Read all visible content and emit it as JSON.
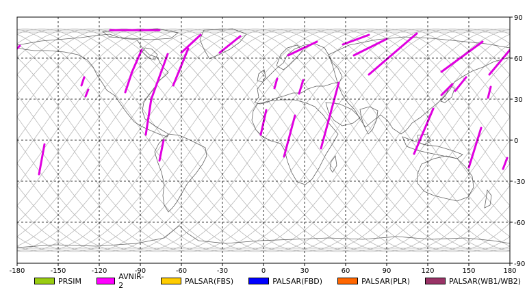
{
  "map": {
    "x_ticks": [
      "-180",
      "-150",
      "-120",
      "-90",
      "-60",
      "-30",
      "0",
      "30",
      "60",
      "90",
      "120",
      "150",
      "180"
    ],
    "y_ticks": [
      "90",
      "60",
      "30",
      "0",
      "-30",
      "-60",
      "-90"
    ],
    "x_tick_values": [
      -180,
      -150,
      -120,
      -90,
      -60,
      -30,
      0,
      30,
      60,
      90,
      120,
      150,
      180
    ],
    "y_tick_values": [
      90,
      60,
      30,
      0,
      -30,
      -60,
      -90
    ],
    "colors": {
      "frame": "#000000",
      "grid": "#000000",
      "coast": "#606060",
      "orbit": "#b8b8b8",
      "swath": "#e000e0"
    },
    "swaths": [
      {
        "lon1": -112,
        "lat1": 80.5,
        "lon2": -76,
        "lat2": 80.5
      },
      {
        "lon1": -89,
        "lat1": 66,
        "lon2": -96,
        "lat2": 50
      },
      {
        "lon1": -96,
        "lat1": 50,
        "lon2": -101,
        "lat2": 35
      },
      {
        "lon1": -70,
        "lat1": 63,
        "lon2": -82,
        "lat2": 30
      },
      {
        "lon1": -82,
        "lat1": 30,
        "lon2": -86,
        "lat2": 4
      },
      {
        "lon1": -55,
        "lat1": 67,
        "lon2": -66,
        "lat2": 40
      },
      {
        "lon1": -46,
        "lat1": 77,
        "lon2": -60,
        "lat2": 64
      },
      {
        "lon1": -17,
        "lat1": 76,
        "lon2": -32,
        "lat2": 64
      },
      {
        "lon1": -73,
        "lat1": 0,
        "lon2": -76,
        "lat2": -15
      },
      {
        "lon1": -160,
        "lat1": -3,
        "lon2": -164,
        "lat2": -25
      },
      {
        "lon1": -131,
        "lat1": 46,
        "lon2": -133,
        "lat2": 40
      },
      {
        "lon1": -128,
        "lat1": 37,
        "lon2": -130,
        "lat2": 32
      },
      {
        "lon1": -178,
        "lat1": 69,
        "lon2": -180,
        "lat2": 67
      },
      {
        "lon1": 2,
        "lat1": 22,
        "lon2": -2,
        "lat2": 4
      },
      {
        "lon1": 10,
        "lat1": 45,
        "lon2": 8,
        "lat2": 38
      },
      {
        "lon1": 39,
        "lat1": 72,
        "lon2": 18,
        "lat2": 62
      },
      {
        "lon1": 29,
        "lat1": 44,
        "lon2": 26,
        "lat2": 34
      },
      {
        "lon1": 23,
        "lat1": 18,
        "lon2": 15,
        "lat2": -12
      },
      {
        "lon1": 55,
        "lat1": 42,
        "lon2": 42,
        "lat2": -6
      },
      {
        "lon1": 90,
        "lat1": 74,
        "lon2": 66,
        "lat2": 62
      },
      {
        "lon1": 112,
        "lat1": 78,
        "lon2": 77,
        "lat2": 48
      },
      {
        "lon1": 77,
        "lat1": 77,
        "lon2": 58,
        "lat2": 70
      },
      {
        "lon1": 124,
        "lat1": 23,
        "lon2": 110,
        "lat2": -10
      },
      {
        "lon1": 160,
        "lat1": 72,
        "lon2": 130,
        "lat2": 50
      },
      {
        "lon1": 180,
        "lat1": 66,
        "lon2": 165,
        "lat2": 48
      },
      {
        "lon1": 138,
        "lat1": 41,
        "lon2": 130,
        "lat2": 33
      },
      {
        "lon1": 148,
        "lat1": 46,
        "lon2": 140,
        "lat2": 36
      },
      {
        "lon1": 159,
        "lat1": 9,
        "lon2": 150,
        "lat2": -20
      },
      {
        "lon1": 178,
        "lat1": -13,
        "lon2": 175,
        "lat2": -21
      },
      {
        "lon1": 166,
        "lat1": 39,
        "lon2": 164,
        "lat2": 31
      }
    ]
  },
  "legend": [
    {
      "label": "PRSIM",
      "color": "#99cc11"
    },
    {
      "label": "AVNIR-2",
      "color": "#ff00ff"
    },
    {
      "label": "PALSAR(FBS)",
      "color": "#ffcc00"
    },
    {
      "label": "PALSAR(FBD)",
      "color": "#0000ff"
    },
    {
      "label": "PALSAR(PLR)",
      "color": "#ff6600"
    },
    {
      "label": "PALSAR(WB1/WB2)",
      "color": "#993366"
    }
  ]
}
